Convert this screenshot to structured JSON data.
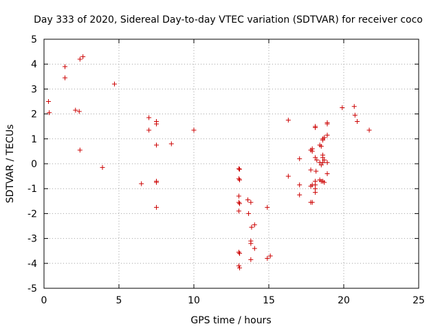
{
  "chart_data": {
    "type": "scatter",
    "title": "Day 333 of 2020, Sidereal Day-to-day VTEC variation (SDTVAR) for receiver coco",
    "xlabel": "GPS time / hours",
    "ylabel": "SDTVAR / TECUs",
    "xlim": [
      0,
      25
    ],
    "ylim": [
      -5,
      5
    ],
    "xticks": [
      0,
      5,
      10,
      15,
      20,
      25
    ],
    "yticks": [
      -5,
      -4,
      -3,
      -2,
      -1,
      0,
      1,
      2,
      3,
      4,
      5
    ],
    "grid": true,
    "marker": "+",
    "color": "#cc0000",
    "series": [
      {
        "name": "SDTVAR",
        "points": [
          [
            0.3,
            2.5
          ],
          [
            0.35,
            2.05
          ],
          [
            1.4,
            3.9
          ],
          [
            1.4,
            3.45
          ],
          [
            2.1,
            2.15
          ],
          [
            2.35,
            2.1
          ],
          [
            2.4,
            4.2
          ],
          [
            2.6,
            4.3
          ],
          [
            2.4,
            0.55
          ],
          [
            3.9,
            -0.15
          ],
          [
            4.7,
            3.2
          ],
          [
            6.5,
            -0.8
          ],
          [
            7.0,
            1.85
          ],
          [
            7.0,
            1.35
          ],
          [
            7.5,
            1.7
          ],
          [
            7.5,
            1.6
          ],
          [
            7.5,
            0.75
          ],
          [
            7.5,
            -0.7
          ],
          [
            7.5,
            -0.75
          ],
          [
            7.5,
            -1.75
          ],
          [
            8.5,
            0.8
          ],
          [
            10.0,
            1.35
          ],
          [
            13.0,
            -0.2
          ],
          [
            13.05,
            -0.22
          ],
          [
            13.0,
            -0.6
          ],
          [
            13.05,
            -0.65
          ],
          [
            13.0,
            -1.3
          ],
          [
            13.0,
            -1.55
          ],
          [
            13.05,
            -1.6
          ],
          [
            13.0,
            -1.9
          ],
          [
            13.0,
            -3.55
          ],
          [
            13.05,
            -3.6
          ],
          [
            13.0,
            -4.1
          ],
          [
            13.05,
            -4.18
          ],
          [
            13.6,
            -1.45
          ],
          [
            13.8,
            -1.55
          ],
          [
            13.65,
            -2.0
          ],
          [
            13.85,
            -2.55
          ],
          [
            14.05,
            -2.45
          ],
          [
            13.8,
            -3.1
          ],
          [
            13.8,
            -3.2
          ],
          [
            14.05,
            -3.4
          ],
          [
            13.8,
            -3.85
          ],
          [
            14.9,
            -1.75
          ],
          [
            14.9,
            -3.8
          ],
          [
            15.1,
            -3.7
          ],
          [
            16.3,
            1.75
          ],
          [
            16.3,
            -0.5
          ],
          [
            17.05,
            0.2
          ],
          [
            17.05,
            -0.85
          ],
          [
            17.05,
            -1.25
          ],
          [
            17.8,
            0.55
          ],
          [
            17.9,
            0.6
          ],
          [
            17.9,
            0.5
          ],
          [
            17.8,
            -0.25
          ],
          [
            17.9,
            -0.85
          ],
          [
            17.8,
            -0.9
          ],
          [
            17.8,
            -1.55
          ],
          [
            17.9,
            -1.55
          ],
          [
            18.1,
            1.5
          ],
          [
            18.1,
            1.45
          ],
          [
            18.1,
            0.25
          ],
          [
            18.2,
            0.15
          ],
          [
            18.15,
            -0.3
          ],
          [
            18.1,
            -0.7
          ],
          [
            18.1,
            -0.85
          ],
          [
            18.1,
            -1.0
          ],
          [
            18.1,
            -1.15
          ],
          [
            18.4,
            0.75
          ],
          [
            18.5,
            0.7
          ],
          [
            18.4,
            0.05
          ],
          [
            18.5,
            -0.05
          ],
          [
            18.4,
            -0.65
          ],
          [
            18.5,
            -0.7
          ],
          [
            18.6,
            1.0
          ],
          [
            18.7,
            1.05
          ],
          [
            18.6,
            0.95
          ],
          [
            18.6,
            0.35
          ],
          [
            18.6,
            0.25
          ],
          [
            18.7,
            0.15
          ],
          [
            18.6,
            0.05
          ],
          [
            18.6,
            -0.7
          ],
          [
            18.7,
            -0.75
          ],
          [
            18.9,
            1.65
          ],
          [
            18.9,
            1.6
          ],
          [
            18.9,
            1.15
          ],
          [
            18.9,
            0.05
          ],
          [
            18.9,
            -0.4
          ],
          [
            19.9,
            2.25
          ],
          [
            20.7,
            2.3
          ],
          [
            20.75,
            1.95
          ],
          [
            20.9,
            1.7
          ],
          [
            21.7,
            1.35
          ]
        ]
      }
    ]
  }
}
